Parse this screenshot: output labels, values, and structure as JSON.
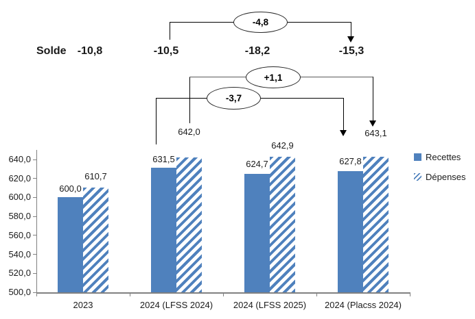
{
  "annotations": {
    "solde_label": "Solde",
    "solde_values": [
      "-10,8",
      "-10,5",
      "-18,2",
      "-15,3"
    ],
    "bridge_values": [
      "-4,8",
      "+1,1",
      "-3,7"
    ]
  },
  "chart_data": {
    "type": "bar",
    "categories": [
      "2023",
      "2024 (LFSS 2024)",
      "2024 (LFSS 2025)",
      "2024 (Placss 2024)"
    ],
    "series": [
      {
        "name": "Recettes",
        "pattern": "solid",
        "values": [
          600.0,
          631.5,
          624.7,
          627.8
        ],
        "value_labels": [
          "600,0",
          "631,5",
          "624,7",
          "627,8"
        ]
      },
      {
        "name": "Dépenses",
        "pattern": "hatched-diagonal",
        "values": [
          610.7,
          642.0,
          642.9,
          643.1
        ],
        "value_labels": [
          "610,7",
          "642,0",
          "642,9",
          "643,1"
        ]
      }
    ],
    "ylim": [
      500,
      640
    ],
    "ytick_interval": 20,
    "ytick_labels": [
      "500,0",
      "520,0",
      "540,0",
      "560,0",
      "580,0",
      "600,0",
      "620,0",
      "640,0"
    ],
    "grid": false,
    "legend_position": "right"
  },
  "colors": {
    "bar_blue": "#4f81bd",
    "axis_gray": "#808080",
    "annotation_black": "#000000"
  }
}
